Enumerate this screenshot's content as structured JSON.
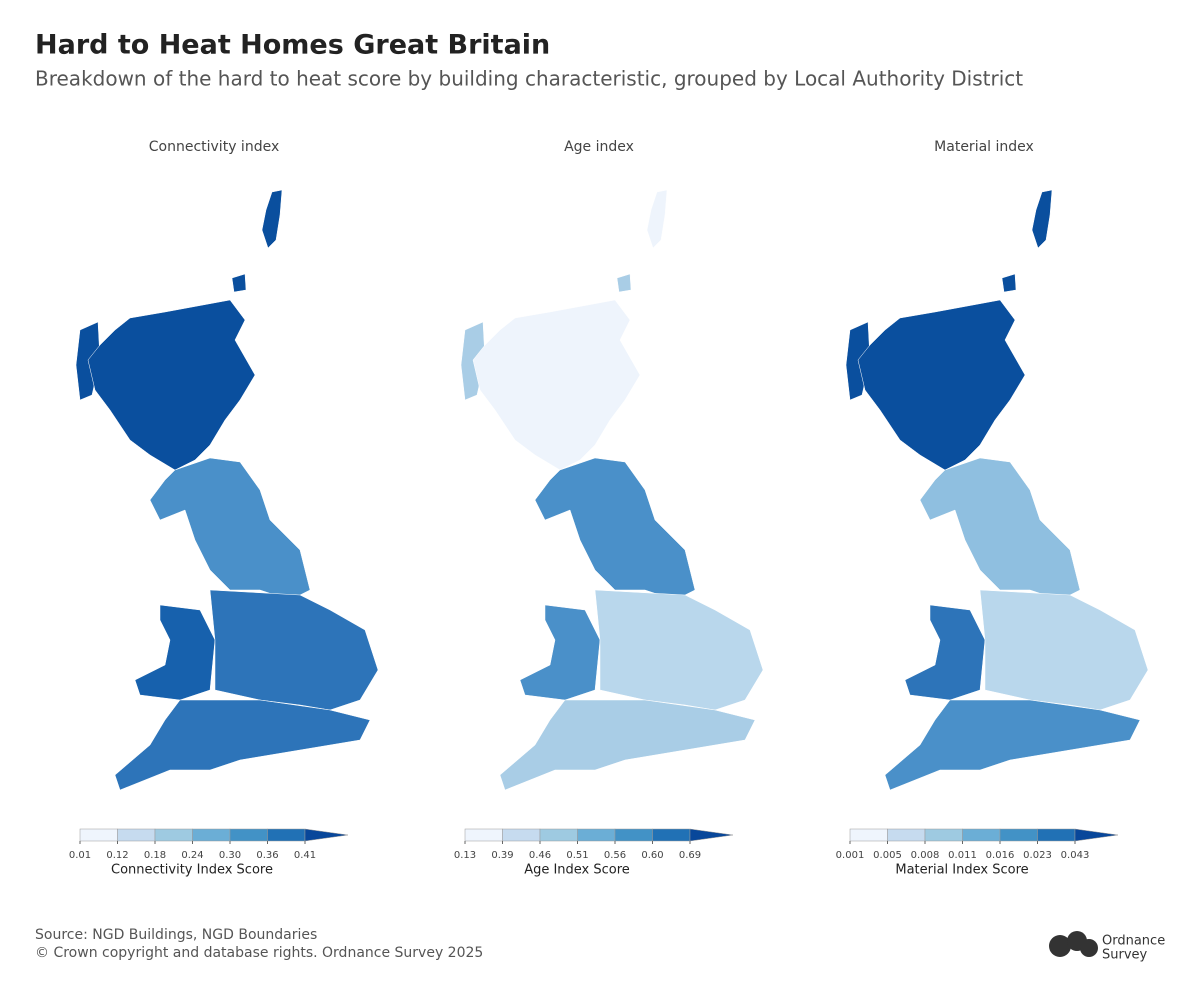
{
  "header": {
    "title": "Hard to Heat Homes Great Britain",
    "subtitle": "Breakdown of the hard to heat score by building characteristic, grouped by Local Authority District"
  },
  "panels": [
    {
      "title": "Connectivity index",
      "legend": {
        "title": "Connectivity Index Score",
        "breaks": [
          0.01,
          0.12,
          0.18,
          0.24,
          {
            "value": 0.3,
            "label": "0.30"
          },
          0.36,
          0.41
        ],
        "colors": [
          "#eff5fd",
          "#c6dbef",
          "#9ecae1",
          "#6baed6",
          "#4292c6",
          "#2171b5",
          "#08479a"
        ]
      }
    },
    {
      "title": "Age index",
      "legend": {
        "title": "Age Index Score",
        "breaks": [
          0.13,
          0.39,
          0.46,
          0.51,
          0.56,
          {
            "value": 0.6,
            "label": "0.60"
          },
          0.69
        ],
        "colors": [
          "#eff5fd",
          "#c6dbef",
          "#9ecae1",
          "#6baed6",
          "#4292c6",
          "#2171b5",
          "#08479a"
        ]
      }
    },
    {
      "title": "Material index",
      "legend": {
        "title": "Material Index Score",
        "breaks": [
          0.001,
          0.005,
          0.008,
          0.011,
          0.016,
          0.023,
          0.043
        ],
        "colors": [
          "#eff5fd",
          "#c6dbef",
          "#9ecae1",
          "#6baed6",
          "#4292c6",
          "#2171b5",
          "#08479a"
        ]
      }
    }
  ],
  "footer": {
    "source": "Source: NGD Buildings, NGD Boundaries",
    "copyright": "© Crown copyright and database rights. Ordnance Survey 2025"
  },
  "logo": {
    "line1": "Ordnance",
    "line2": "Survey"
  }
}
